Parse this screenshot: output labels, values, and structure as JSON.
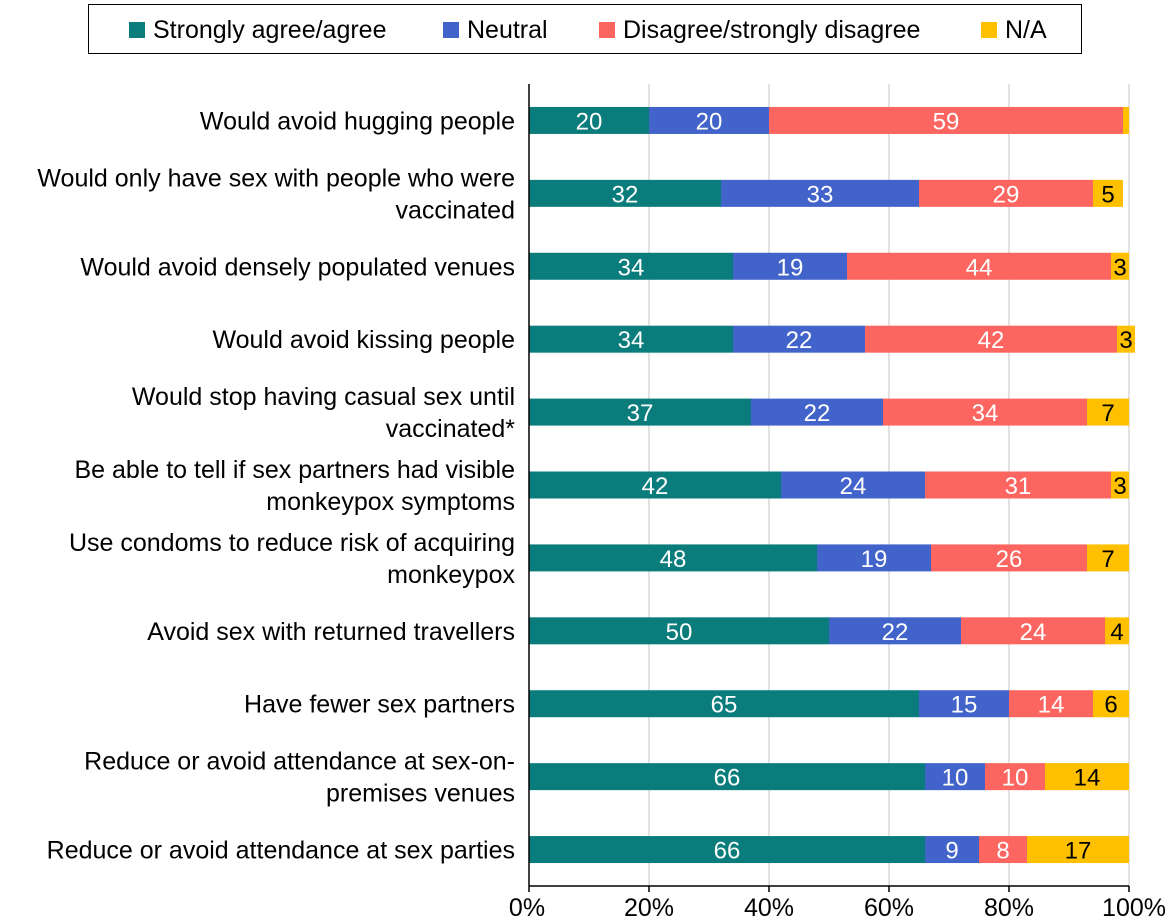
{
  "chart_data": {
    "type": "bar",
    "orientation": "horizontal",
    "stacked": true,
    "legend_position": "top",
    "categories": [
      [
        "Would avoid hugging people"
      ],
      [
        "Would only have sex with people who were",
        "vaccinated"
      ],
      [
        "Would avoid densely populated venues"
      ],
      [
        "Would avoid kissing people"
      ],
      [
        "Would stop having casual sex until",
        "vaccinated*"
      ],
      [
        "Be able to tell if sex partners had visible",
        "monkeypox symptoms"
      ],
      [
        "Use condoms to reduce risk of acquiring",
        "monkeypox"
      ],
      [
        "Avoid sex with returned travellers"
      ],
      [
        "Have fewer sex partners"
      ],
      [
        "Reduce or avoid attendance at sex-on-",
        "premises venues"
      ],
      [
        "Reduce or avoid attendance at sex parties"
      ]
    ],
    "series": [
      {
        "name": "Strongly agree/agree",
        "color": "#0b7c7c",
        "values": [
          20,
          32,
          34,
          34,
          37,
          42,
          48,
          50,
          65,
          66,
          66
        ],
        "labels": [
          "20",
          "32",
          "34",
          "34",
          "37",
          "42",
          "48",
          "50",
          "65",
          "66",
          "66"
        ]
      },
      {
        "name": "Neutral",
        "color": "#4263c9",
        "values": [
          20,
          33,
          19,
          22,
          22,
          24,
          19,
          22,
          15,
          10,
          9
        ],
        "labels": [
          "20",
          "33",
          "19",
          "22",
          "22",
          "24",
          "19",
          "22",
          "15",
          "10",
          "9"
        ]
      },
      {
        "name": "Disagree/strongly disagree",
        "color": "#fd6560",
        "values": [
          59,
          29,
          44,
          42,
          34,
          31,
          26,
          24,
          14,
          10,
          8
        ],
        "labels": [
          "59",
          "29",
          "44",
          "42",
          "34",
          "31",
          "26",
          "24",
          "14",
          "10",
          "8"
        ]
      },
      {
        "name": "N/A",
        "color": "#ffc000",
        "values": [
          1,
          5,
          3,
          3,
          7,
          3,
          7,
          4,
          6,
          14,
          17
        ],
        "labels": [
          "",
          "5",
          "3",
          "3",
          "7",
          "3",
          "7",
          "4",
          "6",
          "14",
          "17"
        ]
      }
    ],
    "xlim": [
      0,
      100
    ],
    "xticks": [
      "0%",
      "20%",
      "40%",
      "60%",
      "80%",
      "100%"
    ],
    "xlabel": "",
    "ylabel": "",
    "grid": "vertical",
    "grid_color": "#d9d9d9"
  }
}
